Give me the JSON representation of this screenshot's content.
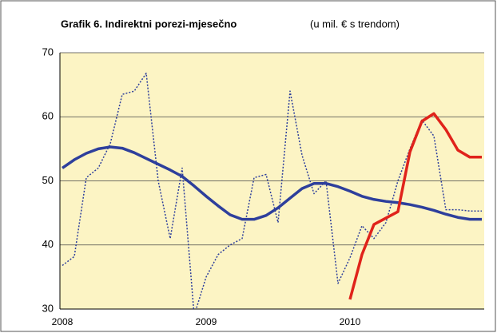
{
  "chart_data": {
    "type": "line",
    "title": "Grafik 6. Indirektni porezi-mjesečno",
    "subtitle": "(u mil. € s trendom)",
    "categories": [
      "2008",
      null,
      null,
      null,
      null,
      null,
      null,
      null,
      null,
      null,
      null,
      null,
      "2009",
      null,
      null,
      null,
      null,
      null,
      null,
      null,
      null,
      null,
      null,
      null,
      "2010",
      null,
      null,
      null,
      null,
      null,
      null,
      null,
      null,
      null,
      null,
      null
    ],
    "series": [
      {
        "color": "#2e3f9c",
        "style": "dotted",
        "values": [
          36.8,
          38.2,
          50.5,
          52,
          55.8,
          63.5,
          64,
          66.8,
          50,
          41,
          52,
          29,
          35,
          38.5,
          40,
          41,
          50.5,
          51,
          43.5,
          64,
          54,
          48,
          50,
          34,
          38,
          43,
          41,
          43.5,
          50,
          55,
          59.5,
          57,
          45.5,
          45.5,
          45.3,
          45.3
        ]
      },
      {
        "color": "#2e3f9c",
        "style": "solid",
        "values": [
          52,
          53.3,
          54.3,
          55,
          55.3,
          55.1,
          54.4,
          53.5,
          52.6,
          51.7,
          50.7,
          49.2,
          47.6,
          46.1,
          44.7,
          44,
          44,
          44.6,
          45.8,
          47.3,
          48.8,
          49.6,
          49.6,
          49.1,
          48.4,
          47.6,
          47.1,
          46.8,
          46.6,
          46.3,
          45.9,
          45.4,
          44.8,
          44.3,
          44,
          44
        ]
      },
      {
        "color": "#e0231b",
        "style": "solid",
        "values": [
          null,
          null,
          null,
          null,
          null,
          null,
          null,
          null,
          null,
          null,
          null,
          null,
          null,
          null,
          null,
          null,
          null,
          null,
          null,
          null,
          null,
          null,
          null,
          null,
          31.5,
          38.5,
          43.2,
          44.2,
          45.2,
          54.5,
          59.3,
          60.5,
          58,
          54.8,
          53.7,
          53.7
        ]
      }
    ],
    "ylim": [
      30,
      70
    ],
    "yticks": [
      30,
      40,
      50,
      60,
      70
    ],
    "grid": true
  }
}
